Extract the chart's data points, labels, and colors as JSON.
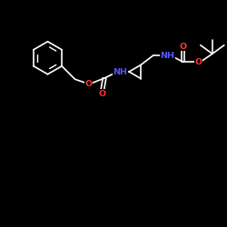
{
  "bg_color": "#000000",
  "bond_color": "#ffffff",
  "N_color": "#5555ff",
  "O_color": "#ff3333",
  "font_size": 6.8,
  "line_width": 1.2,
  "figsize": [
    2.5,
    2.5
  ],
  "dpi": 100,
  "xlim": [
    0,
    10
  ],
  "ylim": [
    0,
    10
  ]
}
